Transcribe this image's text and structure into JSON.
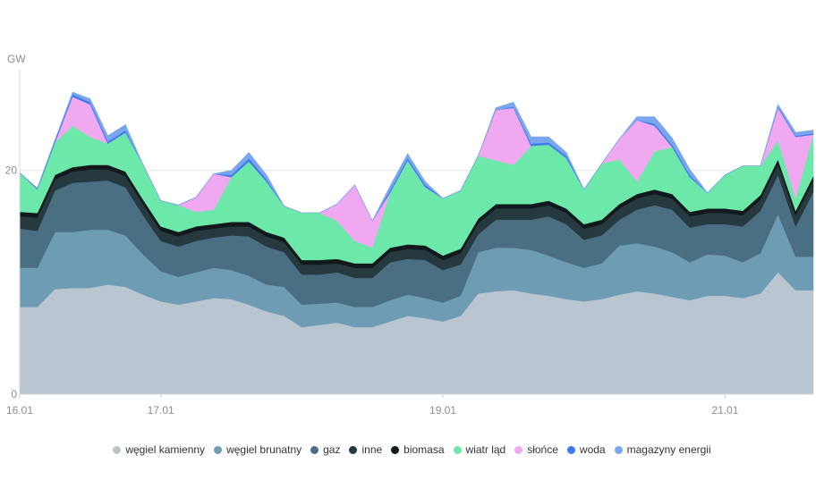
{
  "chart_data": {
    "type": "area",
    "stacked": true,
    "ylabel": "GW",
    "ylim": [
      0,
      29
    ],
    "yticks": [
      0,
      20
    ],
    "grid": true,
    "x_range": [
      0,
      135
    ],
    "x_unit": "hours since 16.01 00:00",
    "xticks": [
      {
        "label": "16.01",
        "x": 0
      },
      {
        "label": "17.01",
        "x": 24
      },
      {
        "label": "19.01",
        "x": 72
      },
      {
        "label": "21.01",
        "x": 120
      }
    ],
    "x": [
      0,
      3,
      6,
      9,
      12,
      15,
      18,
      21,
      24,
      27,
      30,
      33,
      36,
      39,
      42,
      45,
      48,
      51,
      54,
      57,
      60,
      63,
      66,
      69,
      72,
      75,
      78,
      81,
      84,
      87,
      90,
      93,
      96,
      99,
      102,
      105,
      108,
      111,
      114,
      117,
      120,
      123,
      126,
      129,
      132,
      135
    ],
    "series": [
      {
        "name": "węgiel kamienny",
        "color": "#b9c6d0",
        "values": [
          7.8,
          7.8,
          9.4,
          9.5,
          9.5,
          9.8,
          9.6,
          8.9,
          8.3,
          8.0,
          8.3,
          8.6,
          8.5,
          8.0,
          7.4,
          7.0,
          6.0,
          6.2,
          6.4,
          6.0,
          6.0,
          6.5,
          7.0,
          6.8,
          6.5,
          7.0,
          9.0,
          9.2,
          9.3,
          9.0,
          8.8,
          8.5,
          8.3,
          8.5,
          8.9,
          9.2,
          9.0,
          8.7,
          8.4,
          8.8,
          8.8,
          8.6,
          9.0,
          10.9,
          9.3,
          9.3
        ]
      },
      {
        "name": "węgiel brunatny",
        "color": "#6e9cb4",
        "values": [
          3.5,
          3.5,
          5.1,
          5.0,
          5.2,
          4.9,
          4.6,
          3.6,
          2.7,
          2.5,
          2.6,
          2.7,
          2.6,
          2.6,
          2.4,
          2.6,
          2.0,
          1.9,
          1.8,
          1.8,
          1.8,
          1.9,
          1.9,
          1.8,
          1.7,
          1.8,
          3.7,
          3.9,
          3.8,
          3.9,
          3.6,
          3.3,
          3.0,
          3.2,
          4.4,
          4.3,
          4.2,
          4.0,
          3.4,
          3.7,
          3.6,
          3.2,
          3.6,
          5.2,
          3.0,
          3.0
        ]
      },
      {
        "name": "gaz",
        "color": "#4a6e82",
        "values": [
          3.5,
          3.3,
          3.7,
          4.4,
          4.3,
          4.4,
          4.3,
          3.5,
          2.7,
          2.7,
          2.8,
          2.7,
          3.1,
          3.5,
          3.4,
          3.1,
          2.7,
          2.6,
          2.7,
          2.6,
          2.6,
          3.4,
          3.2,
          3.4,
          2.9,
          2.8,
          1.6,
          2.5,
          2.5,
          2.7,
          3.5,
          3.4,
          2.5,
          2.5,
          2.3,
          3.0,
          3.7,
          3.8,
          3.1,
          2.7,
          2.8,
          3.2,
          3.8,
          3.5,
          2.7,
          5.8
        ]
      },
      {
        "name": "inne",
        "color": "#26393f",
        "values": [
          1.1,
          1.2,
          1.0,
          1.0,
          1.1,
          1.0,
          1.0,
          1.0,
          0.9,
          0.9,
          0.9,
          0.8,
          0.8,
          0.9,
          0.9,
          0.9,
          0.9,
          0.9,
          0.8,
          0.9,
          0.9,
          0.9,
          0.9,
          0.9,
          0.9,
          1.0,
          1.0,
          1.0,
          1.0,
          1.0,
          1.0,
          1.0,
          1.0,
          1.0,
          1.0,
          1.0,
          1.0,
          1.0,
          1.0,
          1.0,
          1.0,
          1.0,
          1.0,
          1.0,
          1.0,
          1.0
        ]
      },
      {
        "name": "biomasa",
        "color": "#11191d",
        "values": [
          0.4,
          0.4,
          0.4,
          0.4,
          0.4,
          0.4,
          0.4,
          0.4,
          0.4,
          0.4,
          0.4,
          0.4,
          0.4,
          0.4,
          0.4,
          0.4,
          0.4,
          0.4,
          0.4,
          0.4,
          0.4,
          0.4,
          0.4,
          0.4,
          0.4,
          0.4,
          0.4,
          0.4,
          0.4,
          0.4,
          0.4,
          0.4,
          0.4,
          0.4,
          0.4,
          0.4,
          0.4,
          0.4,
          0.4,
          0.4,
          0.4,
          0.4,
          0.4,
          0.4,
          0.4,
          0.4
        ]
      },
      {
        "name": "wiatr ląd",
        "color": "#6ce9a8",
        "values": [
          3.5,
          2.1,
          2.9,
          3.7,
          2.5,
          1.9,
          3.5,
          3.1,
          2.3,
          2.4,
          1.3,
          1.3,
          4.0,
          5.4,
          4.5,
          2.8,
          4.2,
          4.2,
          3.4,
          2.0,
          1.4,
          4.9,
          7.5,
          5.2,
          5.1,
          5.2,
          5.6,
          3.9,
          3.5,
          5.2,
          5.0,
          4.5,
          3.1,
          5.0,
          4.0,
          1.1,
          3.4,
          4.2,
          3.1,
          1.4,
          3.0,
          4.0,
          2.6,
          1.7,
          1.1,
          3.7
        ]
      },
      {
        "name": "słońce",
        "color": "#f0a8f0",
        "values": [
          0,
          0,
          0,
          2.6,
          2.9,
          0,
          0,
          0,
          0,
          0,
          1.3,
          3.2,
          0,
          0,
          0,
          0,
          0,
          0,
          1.5,
          5.0,
          2.4,
          0,
          0,
          0,
          0,
          0,
          0,
          4.5,
          5.1,
          0,
          0,
          0,
          0,
          0,
          1.8,
          5.5,
          2.3,
          0,
          0,
          0,
          0,
          0,
          0,
          2.9,
          5.5,
          0
        ]
      },
      {
        "name": "woda",
        "color": "#3f7bf0",
        "values": [
          0,
          0.1,
          0.2,
          0.2,
          0.2,
          0.2,
          0.2,
          0,
          0,
          0,
          0,
          0,
          0.2,
          0.3,
          0.2,
          0,
          0,
          0,
          0,
          0,
          0,
          0.2,
          0.2,
          0.2,
          0,
          0,
          0,
          0,
          0.1,
          0.2,
          0.2,
          0.2,
          0,
          0,
          0,
          0,
          0.2,
          0.2,
          0.2,
          0,
          0,
          0,
          0,
          0.1,
          0.1,
          0.1
        ]
      },
      {
        "name": "magazyny energii",
        "color": "#7aa6ee",
        "values": [
          0,
          0,
          0,
          0.2,
          0.3,
          0.5,
          0.5,
          0,
          0,
          0,
          0,
          0,
          0.4,
          0.5,
          0.4,
          0,
          0,
          0,
          0,
          0,
          0,
          0.4,
          0.4,
          0.3,
          0,
          0,
          0,
          0.2,
          0.4,
          0.6,
          0.5,
          0.3,
          0,
          0,
          0,
          0.3,
          0.6,
          0.6,
          0.5,
          0,
          0,
          0,
          0,
          0.2,
          0.3,
          0.3
        ]
      }
    ],
    "legend_position": "bottom-center"
  }
}
